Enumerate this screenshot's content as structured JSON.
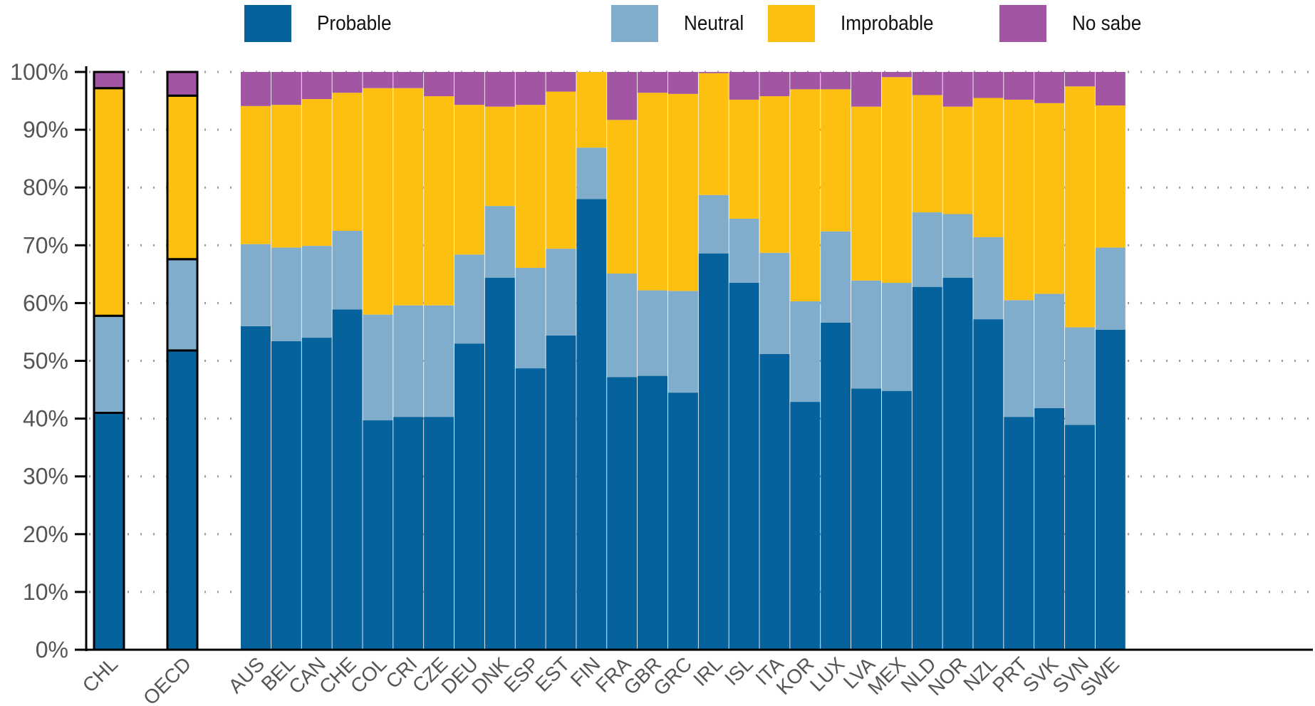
{
  "chart_data": {
    "type": "bar",
    "stacked": true,
    "title": "",
    "xlabel": "",
    "ylabel": "",
    "ylim": [
      0,
      100
    ],
    "yticks": [
      "0%",
      "10%",
      "20%",
      "30%",
      "40%",
      "50%",
      "60%",
      "70%",
      "80%",
      "90%",
      "100%"
    ],
    "grid": "horizontal-dotted",
    "legend_position": "top",
    "highlighted_categories": [
      "CHL",
      "OECD"
    ],
    "categories": [
      "CHL",
      "OECD",
      "AUS",
      "BEL",
      "CAN",
      "CHE",
      "COL",
      "CRI",
      "CZE",
      "DEU",
      "DNK",
      "ESP",
      "EST",
      "FIN",
      "FRA",
      "GBR",
      "GRC",
      "IRL",
      "ISL",
      "ITA",
      "KOR",
      "LUX",
      "LVA",
      "MEX",
      "NLD",
      "NOR",
      "NZL",
      "PRT",
      "SVK",
      "SVN",
      "SWE"
    ],
    "series": [
      {
        "name": "Probable",
        "color": "#05629c",
        "values": [
          41.0,
          51.8,
          56.0,
          53.4,
          54.0,
          58.9,
          39.7,
          40.3,
          40.3,
          53.0,
          64.4,
          48.7,
          54.4,
          78.0,
          47.2,
          47.4,
          44.5,
          68.6,
          63.5,
          51.2,
          42.9,
          56.6,
          45.2,
          44.8,
          62.8,
          64.4,
          57.2,
          40.3,
          41.8,
          38.9,
          55.4
        ]
      },
      {
        "name": "Neutral",
        "color": "#7fadcb",
        "values": [
          16.8,
          15.8,
          14.2,
          16.2,
          15.9,
          13.6,
          18.3,
          19.3,
          19.3,
          15.4,
          12.4,
          17.4,
          15.0,
          8.9,
          17.9,
          14.8,
          17.6,
          10.1,
          11.1,
          17.5,
          17.4,
          15.8,
          18.7,
          18.7,
          12.9,
          11.0,
          14.2,
          20.2,
          19.8,
          16.9,
          14.2
        ]
      },
      {
        "name": "Improbable",
        "color": "#fdc010",
        "values": [
          39.4,
          28.3,
          23.9,
          24.7,
          25.4,
          23.9,
          39.2,
          37.6,
          36.2,
          25.9,
          17.2,
          28.2,
          27.2,
          13.1,
          26.6,
          34.2,
          34.1,
          21.1,
          20.6,
          27.1,
          36.7,
          24.6,
          30.1,
          35.6,
          20.3,
          18.6,
          24.1,
          34.7,
          33.0,
          41.7,
          24.6
        ]
      },
      {
        "name": "No sabe",
        "color": "#a155a2",
        "values": [
          2.8,
          4.1,
          5.9,
          5.7,
          4.7,
          3.6,
          2.8,
          2.8,
          4.2,
          5.7,
          6.0,
          5.7,
          3.4,
          0.0,
          8.3,
          3.6,
          3.8,
          0.2,
          4.8,
          4.2,
          3.0,
          3.0,
          6.0,
          0.9,
          4.0,
          6.0,
          4.5,
          4.8,
          5.4,
          2.5,
          5.8
        ]
      }
    ]
  },
  "legend": {
    "items": [
      {
        "label": "Probable",
        "color": "#05629c"
      },
      {
        "label": "Neutral",
        "color": "#7fadcb"
      },
      {
        "label": "Improbable",
        "color": "#fdc010"
      },
      {
        "label": "No sabe",
        "color": "#a155a2"
      }
    ]
  }
}
